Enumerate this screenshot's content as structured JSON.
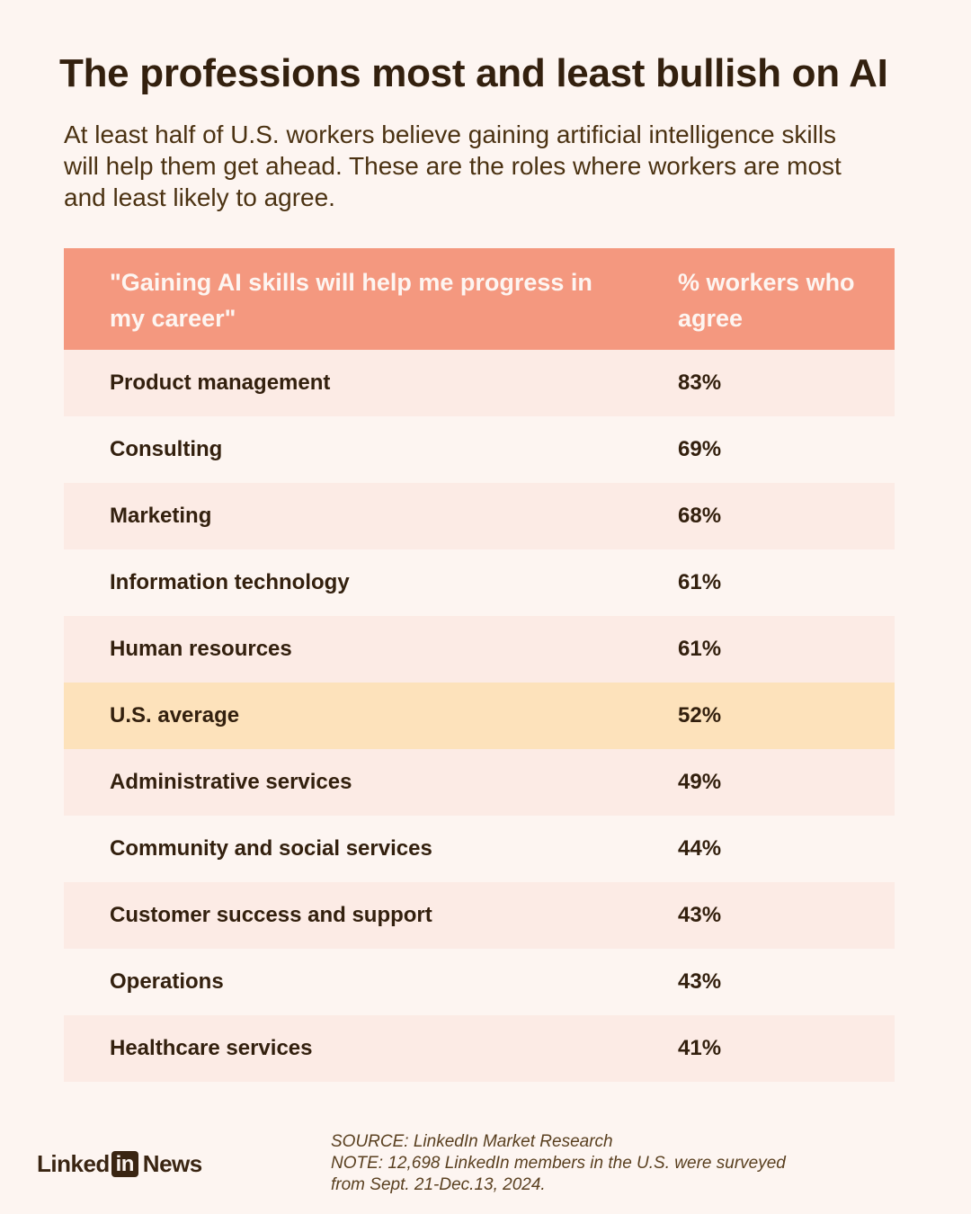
{
  "title": "The professions most and least bullish on AI",
  "subtitle": "At least half of U.S. workers believe gaining artificial intelligence skills will help them get ahead. These are the roles where workers are most and least likely to agree.",
  "chart_data": {
    "type": "table",
    "columns": [
      "\"Gaining AI skills will help me progress in my career\"",
      "% workers who agree"
    ],
    "rows": [
      {
        "label": "Product management",
        "value": "83%"
      },
      {
        "label": "Consulting",
        "value": "69%"
      },
      {
        "label": "Marketing",
        "value": "68%"
      },
      {
        "label": "Information technology",
        "value": "61%"
      },
      {
        "label": "Human resources",
        "value": "61%"
      },
      {
        "label": "U.S. average",
        "value": "52%"
      },
      {
        "label": "Administrative services",
        "value": "49%"
      },
      {
        "label": "Community and social services",
        "value": "44%"
      },
      {
        "label": "Customer success and support",
        "value": "43%"
      },
      {
        "label": "Operations",
        "value": "43%"
      },
      {
        "label": "Healthcare services",
        "value": "41%"
      }
    ],
    "highlight_row": "U.S. average"
  },
  "colors": {
    "header_bg": "#f4987f",
    "row_alt_bg": "#fcebe5",
    "highlight_bg": "#fde2bb",
    "page_bg": "#fdf5f1",
    "text": "#33200e"
  },
  "footer": {
    "source": "SOURCE: LinkedIn Market Research",
    "note_line1": "NOTE: 12,698 LinkedIn members in the U.S. were surveyed",
    "note_line2": "from Sept. 21-Dec.13, 2024."
  },
  "logo": {
    "word1": "Linked",
    "box": "in",
    "word2": "News"
  }
}
